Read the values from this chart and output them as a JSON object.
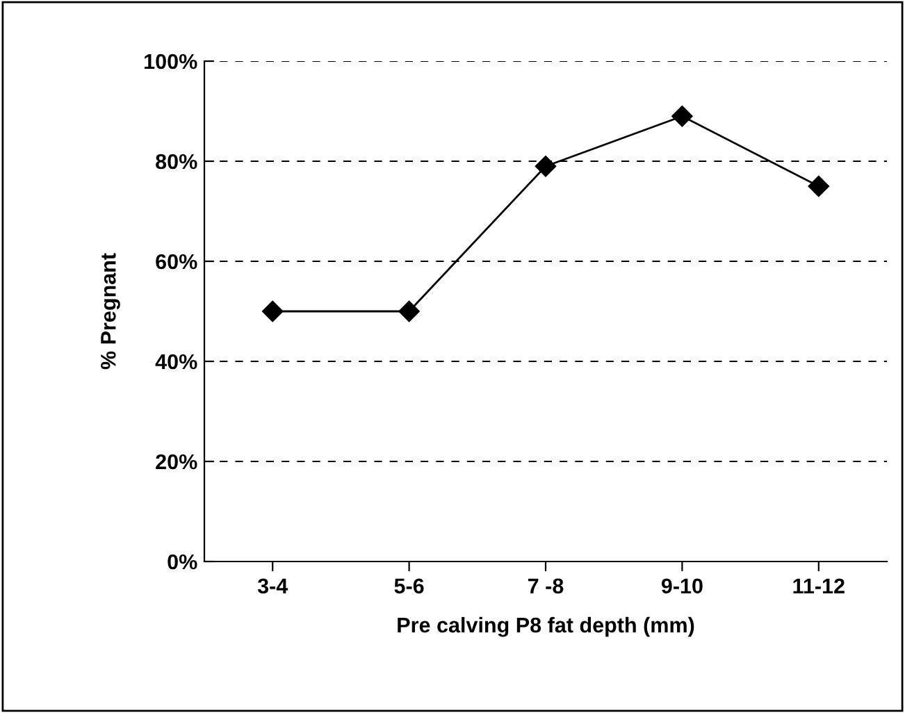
{
  "chart_data": {
    "type": "line",
    "xlabel": "Pre calving P8 fat depth (mm)",
    "ylabel": "% Pregnant",
    "categories": [
      "3-4",
      "5-6",
      "7 -8",
      "9-10",
      "11-12"
    ],
    "series": [
      {
        "color": "#000000",
        "values": [
          50,
          50,
          79,
          89,
          75
        ]
      }
    ],
    "ylim": [
      0,
      100
    ],
    "yticks": [
      {
        "value": 0,
        "label": "0%"
      },
      {
        "value": 20,
        "label": "20%"
      },
      {
        "value": 40,
        "label": "40%"
      },
      {
        "value": 60,
        "label": "60%"
      },
      {
        "value": 80,
        "label": "80%"
      },
      {
        "value": 100,
        "label": "100%"
      }
    ],
    "grid": "y",
    "marker": "diamond",
    "line_style": "solid",
    "legend": false
  }
}
